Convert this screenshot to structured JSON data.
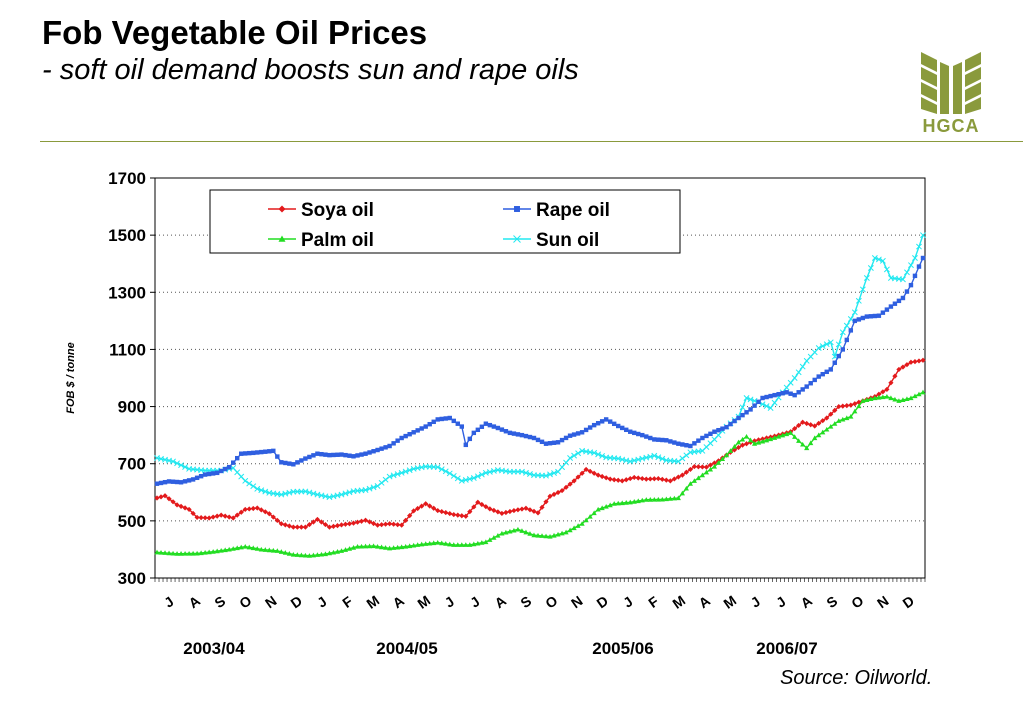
{
  "header": {
    "title": "Fob Vegetable Oil Prices",
    "subtitle": "- soft oil demand boosts sun and rape oils",
    "logo_text": "HGCA"
  },
  "source": "Source: Oilworld.",
  "colors": {
    "soya": "#e31a1c",
    "rape": "#2f5fe0",
    "palm": "#22dd22",
    "sun": "#22e8f0",
    "accent": "#8a9a3c"
  },
  "chart_data": {
    "type": "line",
    "title": "",
    "xlabel": "",
    "ylabel": "FOB $ / tonne",
    "ylim": [
      300,
      1700
    ],
    "yticks": [
      300,
      500,
      700,
      900,
      1100,
      1300,
      1500,
      1700
    ],
    "grid": "horizontal-dotted",
    "legend_position": "top-left",
    "x_tick_labels": [
      "J",
      "A",
      "S",
      "O",
      "N",
      "D",
      "J",
      "F",
      "M",
      "A",
      "M",
      "J",
      "J",
      "A",
      "S",
      "O",
      "N",
      "D",
      "J",
      "F",
      "M",
      "A",
      "M",
      "J",
      "J",
      "A",
      "S",
      "O",
      "N",
      "D"
    ],
    "x_groups": [
      "2003/04",
      "2004/05",
      "2005/06",
      "2006/07"
    ],
    "x_unit": "week",
    "series": [
      {
        "name": "Soya oil",
        "color_key": "soya",
        "marker": "diamond",
        "knots": [
          [
            0,
            580
          ],
          [
            2,
            588
          ],
          [
            5,
            556
          ],
          [
            8,
            540
          ],
          [
            10,
            512
          ],
          [
            13,
            510
          ],
          [
            16,
            520
          ],
          [
            19,
            510
          ],
          [
            22,
            540
          ],
          [
            25,
            545
          ],
          [
            28,
            525
          ],
          [
            31,
            490
          ],
          [
            34,
            478
          ],
          [
            37,
            478
          ],
          [
            40,
            505
          ],
          [
            43,
            478
          ],
          [
            46,
            486
          ],
          [
            49,
            492
          ],
          [
            52,
            502
          ],
          [
            55,
            485
          ],
          [
            58,
            490
          ],
          [
            61,
            485
          ],
          [
            64,
            535
          ],
          [
            67,
            560
          ],
          [
            70,
            536
          ],
          [
            74,
            522
          ],
          [
            77,
            516
          ],
          [
            80,
            565
          ],
          [
            83,
            542
          ],
          [
            86,
            526
          ],
          [
            89,
            536
          ],
          [
            92,
            544
          ],
          [
            95,
            528
          ],
          [
            98,
            586
          ],
          [
            101,
            606
          ],
          [
            104,
            640
          ],
          [
            107,
            680
          ],
          [
            110,
            660
          ],
          [
            113,
            646
          ],
          [
            116,
            640
          ],
          [
            119,
            652
          ],
          [
            122,
            646
          ],
          [
            125,
            648
          ],
          [
            128,
            640
          ],
          [
            131,
            660
          ],
          [
            134,
            690
          ],
          [
            137,
            688
          ],
          [
            140,
            710
          ],
          [
            143,
            740
          ],
          [
            146,
            765
          ],
          [
            149,
            780
          ],
          [
            152,
            790
          ],
          [
            155,
            800
          ],
          [
            158,
            812
          ],
          [
            161,
            845
          ],
          [
            164,
            832
          ],
          [
            167,
            860
          ],
          [
            170,
            900
          ],
          [
            173,
            905
          ],
          [
            176,
            920
          ],
          [
            179,
            935
          ],
          [
            182,
            960
          ],
          [
            185,
            1030
          ],
          [
            188,
            1055
          ],
          [
            191,
            1062
          ]
        ]
      },
      {
        "name": "Rape oil",
        "color_key": "rape",
        "marker": "square",
        "knots": [
          [
            0,
            630
          ],
          [
            3,
            638
          ],
          [
            6,
            635
          ],
          [
            9,
            645
          ],
          [
            12,
            662
          ],
          [
            15,
            668
          ],
          [
            18,
            688
          ],
          [
            21,
            735
          ],
          [
            24,
            738
          ],
          [
            27,
            742
          ],
          [
            29,
            745
          ],
          [
            31,
            705
          ],
          [
            34,
            698
          ],
          [
            37,
            718
          ],
          [
            40,
            735
          ],
          [
            43,
            730
          ],
          [
            46,
            732
          ],
          [
            49,
            726
          ],
          [
            52,
            735
          ],
          [
            55,
            748
          ],
          [
            58,
            762
          ],
          [
            61,
            790
          ],
          [
            64,
            810
          ],
          [
            67,
            830
          ],
          [
            70,
            855
          ],
          [
            73,
            860
          ],
          [
            76,
            830
          ],
          [
            77,
            766
          ],
          [
            79,
            808
          ],
          [
            82,
            840
          ],
          [
            85,
            825
          ],
          [
            88,
            808
          ],
          [
            91,
            800
          ],
          [
            94,
            790
          ],
          [
            97,
            770
          ],
          [
            100,
            775
          ],
          [
            103,
            798
          ],
          [
            106,
            810
          ],
          [
            109,
            835
          ],
          [
            112,
            855
          ],
          [
            115,
            832
          ],
          [
            118,
            812
          ],
          [
            121,
            800
          ],
          [
            124,
            785
          ],
          [
            127,
            782
          ],
          [
            130,
            770
          ],
          [
            133,
            762
          ],
          [
            136,
            790
          ],
          [
            139,
            812
          ],
          [
            142,
            828
          ],
          [
            145,
            860
          ],
          [
            148,
            890
          ],
          [
            151,
            930
          ],
          [
            154,
            940
          ],
          [
            157,
            950
          ],
          [
            159,
            940
          ],
          [
            162,
            970
          ],
          [
            165,
            1005
          ],
          [
            168,
            1030
          ],
          [
            171,
            1100
          ],
          [
            174,
            1200
          ],
          [
            177,
            1215
          ],
          [
            180,
            1218
          ],
          [
            183,
            1250
          ],
          [
            186,
            1280
          ],
          [
            188,
            1325
          ],
          [
            190,
            1390
          ],
          [
            191,
            1420
          ]
        ]
      },
      {
        "name": "Palm oil",
        "color_key": "palm",
        "marker": "triangle",
        "knots": [
          [
            0,
            390
          ],
          [
            5,
            385
          ],
          [
            10,
            386
          ],
          [
            14,
            392
          ],
          [
            18,
            400
          ],
          [
            22,
            410
          ],
          [
            26,
            400
          ],
          [
            30,
            395
          ],
          [
            34,
            382
          ],
          [
            38,
            378
          ],
          [
            42,
            384
          ],
          [
            46,
            395
          ],
          [
            50,
            410
          ],
          [
            54,
            412
          ],
          [
            58,
            404
          ],
          [
            62,
            410
          ],
          [
            66,
            418
          ],
          [
            70,
            424
          ],
          [
            74,
            416
          ],
          [
            78,
            416
          ],
          [
            82,
            426
          ],
          [
            86,
            456
          ],
          [
            90,
            470
          ],
          [
            94,
            450
          ],
          [
            98,
            445
          ],
          [
            102,
            460
          ],
          [
            106,
            490
          ],
          [
            110,
            540
          ],
          [
            114,
            560
          ],
          [
            118,
            565
          ],
          [
            122,
            574
          ],
          [
            126,
            575
          ],
          [
            130,
            580
          ],
          [
            133,
            630
          ],
          [
            136,
            660
          ],
          [
            139,
            690
          ],
          [
            142,
            730
          ],
          [
            145,
            775
          ],
          [
            147,
            795
          ],
          [
            149,
            770
          ],
          [
            152,
            782
          ],
          [
            155,
            795
          ],
          [
            158,
            808
          ],
          [
            160,
            780
          ],
          [
            162,
            755
          ],
          [
            164,
            790
          ],
          [
            167,
            820
          ],
          [
            170,
            850
          ],
          [
            173,
            865
          ],
          [
            176,
            920
          ],
          [
            179,
            930
          ],
          [
            182,
            935
          ],
          [
            185,
            920
          ],
          [
            188,
            930
          ],
          [
            191,
            950
          ]
        ]
      },
      {
        "name": "Sun oil",
        "color_key": "sun",
        "marker": "x",
        "knots": [
          [
            0,
            720
          ],
          [
            4,
            708
          ],
          [
            8,
            682
          ],
          [
            12,
            676
          ],
          [
            16,
            676
          ],
          [
            19,
            685
          ],
          [
            22,
            640
          ],
          [
            25,
            612
          ],
          [
            28,
            598
          ],
          [
            31,
            592
          ],
          [
            34,
            602
          ],
          [
            37,
            603
          ],
          [
            40,
            592
          ],
          [
            43,
            583
          ],
          [
            46,
            592
          ],
          [
            49,
            604
          ],
          [
            52,
            608
          ],
          [
            55,
            622
          ],
          [
            58,
            655
          ],
          [
            61,
            668
          ],
          [
            64,
            682
          ],
          [
            67,
            690
          ],
          [
            70,
            688
          ],
          [
            73,
            666
          ],
          [
            76,
            640
          ],
          [
            79,
            650
          ],
          [
            82,
            668
          ],
          [
            85,
            678
          ],
          [
            88,
            672
          ],
          [
            91,
            672
          ],
          [
            94,
            660
          ],
          [
            97,
            658
          ],
          [
            100,
            672
          ],
          [
            103,
            720
          ],
          [
            106,
            745
          ],
          [
            109,
            738
          ],
          [
            112,
            722
          ],
          [
            115,
            718
          ],
          [
            118,
            708
          ],
          [
            121,
            718
          ],
          [
            124,
            728
          ],
          [
            127,
            712
          ],
          [
            130,
            708
          ],
          [
            133,
            740
          ],
          [
            136,
            745
          ],
          [
            139,
            785
          ],
          [
            142,
            830
          ],
          [
            145,
            865
          ],
          [
            147,
            930
          ],
          [
            150,
            915
          ],
          [
            153,
            895
          ],
          [
            156,
            950
          ],
          [
            159,
            1000
          ],
          [
            162,
            1060
          ],
          [
            165,
            1105
          ],
          [
            168,
            1125
          ],
          [
            169,
            1075
          ],
          [
            171,
            1160
          ],
          [
            174,
            1230
          ],
          [
            177,
            1350
          ],
          [
            179,
            1420
          ],
          [
            181,
            1410
          ],
          [
            183,
            1350
          ],
          [
            186,
            1345
          ],
          [
            189,
            1420
          ],
          [
            191,
            1500
          ]
        ]
      }
    ]
  }
}
